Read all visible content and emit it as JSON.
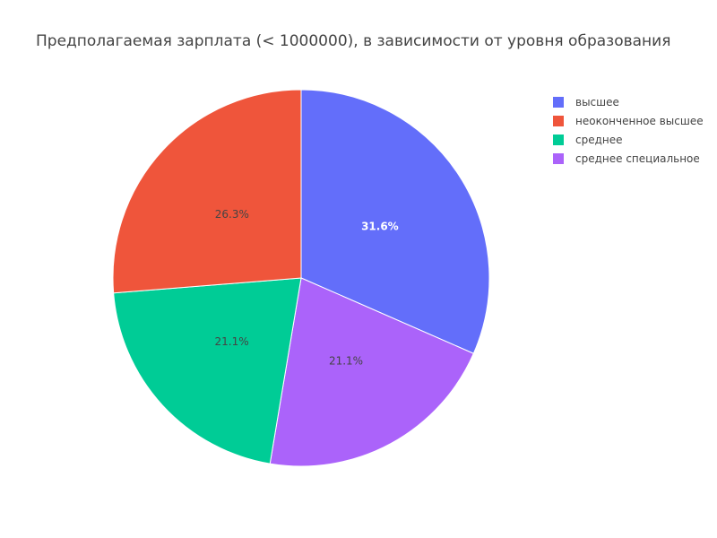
{
  "chart_data": {
    "type": "pie",
    "title": "Предполагаемая зарплата (< 1000000), в зависимости от уровня образования",
    "labels": [
      "высшее",
      "неоконченное высшее",
      "среднее",
      "среднее специальное"
    ],
    "values": [
      31.6,
      26.3,
      21.1,
      21.1
    ],
    "value_labels": [
      "31.6%",
      "26.3%",
      "21.1%",
      "21.1%"
    ],
    "colors": [
      "#636efa",
      "#EF553B",
      "#00cc96",
      "#ab63fa"
    ],
    "text_colors": [
      "#ffffff",
      "#444444",
      "#444444",
      "#444444"
    ],
    "slice_order": [
      0,
      3,
      2,
      1
    ],
    "direction": "clockwise",
    "start_angle_deg": 90,
    "legend_position": "top-right"
  }
}
